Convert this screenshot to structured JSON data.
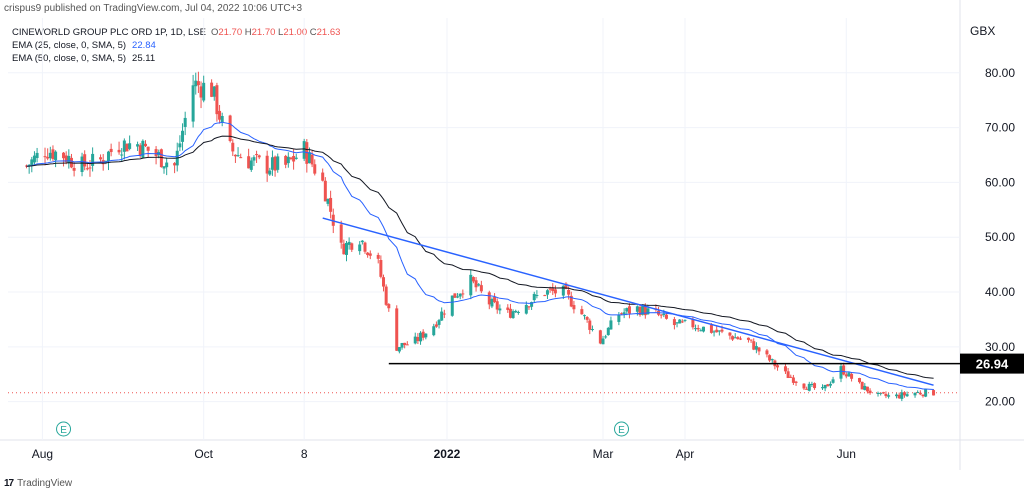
{
  "header": {
    "attribution": "crispus9 published on TradingView.com, Jul 04, 2022 10:06 UTC+3"
  },
  "legend": {
    "symbol": "CINEWORLD GROUP PLC ORD 1P, 1D, LSE",
    "open": "21.70",
    "high": "21.70",
    "low": "21.00",
    "close": "21.63",
    "ema25_label": "EMA (25, close, 0, SMA, 5)",
    "ema25_value": "22.84",
    "ema50_label": "EMA (50, close, 0, SMA, 5)",
    "ema50_value": "25.11"
  },
  "currency": "GBX",
  "footer": {
    "brand": "TradingView"
  },
  "chart_data": {
    "type": "candlestick",
    "title": "CINEWORLD GROUP PLC ORD 1P, 1D, LSE",
    "ylabel": "GBX",
    "ylim": [
      13,
      90
    ],
    "y_ticks": [
      "20.00",
      "30.00",
      "40.00",
      "50.00",
      "60.00",
      "70.00",
      "80.00"
    ],
    "x_tick_labels": [
      "Aug",
      "Oct",
      "8",
      "2022",
      "Mar",
      "Apr",
      "Jun"
    ],
    "price_label": "26.94",
    "colors": {
      "up": "#26a69a",
      "down": "#ef5350",
      "ema25": "#2962ff",
      "ema50": "#131722",
      "trendline": "#2962ff",
      "support": "#000000"
    },
    "support_level": 26.94,
    "trendline": {
      "start": [
        "2021-11-15",
        53.5
      ],
      "end": [
        "2022-07-04",
        23.0
      ]
    },
    "event_markers": [
      "2021-08-09",
      "2022-03-08"
    ],
    "close_prices": [
      [
        "2021-07-26",
        63
      ],
      [
        "2021-08-02",
        66
      ],
      [
        "2021-08-09",
        65
      ],
      [
        "2021-08-16",
        63
      ],
      [
        "2021-08-23",
        64
      ],
      [
        "2021-08-30",
        67
      ],
      [
        "2021-09-06",
        67
      ],
      [
        "2021-09-13",
        65
      ],
      [
        "2021-09-20",
        63
      ],
      [
        "2021-09-27",
        78
      ],
      [
        "2021-10-04",
        77
      ],
      [
        "2021-10-11",
        66
      ],
      [
        "2021-10-18",
        64
      ],
      [
        "2021-10-25",
        63
      ],
      [
        "2021-11-01",
        63
      ],
      [
        "2021-11-08",
        66
      ],
      [
        "2021-11-15",
        60
      ],
      [
        "2021-11-22",
        48
      ],
      [
        "2021-11-29",
        50
      ],
      [
        "2021-12-06",
        45
      ],
      [
        "2021-12-13",
        30
      ],
      [
        "2021-12-20",
        31
      ],
      [
        "2021-12-27",
        34
      ],
      [
        "2022-01-03",
        39
      ],
      [
        "2022-01-10",
        42
      ],
      [
        "2022-01-17",
        38
      ],
      [
        "2022-01-24",
        36
      ],
      [
        "2022-01-31",
        38
      ],
      [
        "2022-02-07",
        40
      ],
      [
        "2022-02-14",
        40
      ],
      [
        "2022-02-21",
        36
      ],
      [
        "2022-02-28",
        31
      ],
      [
        "2022-03-07",
        36
      ],
      [
        "2022-03-14",
        37
      ],
      [
        "2022-03-21",
        36
      ],
      [
        "2022-03-28",
        34
      ],
      [
        "2022-04-04",
        34
      ],
      [
        "2022-04-11",
        33
      ],
      [
        "2022-04-18",
        32
      ],
      [
        "2022-04-25",
        31
      ],
      [
        "2022-05-02",
        28
      ],
      [
        "2022-05-09",
        25
      ],
      [
        "2022-05-16",
        23
      ],
      [
        "2022-05-23",
        22
      ],
      [
        "2022-05-30",
        26
      ],
      [
        "2022-06-06",
        23
      ],
      [
        "2022-06-13",
        21
      ],
      [
        "2022-06-20",
        21
      ],
      [
        "2022-06-27",
        21.63
      ]
    ]
  }
}
